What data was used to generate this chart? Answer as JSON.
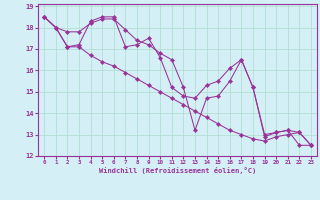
{
  "line1_x": [
    0,
    1,
    2,
    3,
    4,
    5,
    6,
    7,
    8,
    9,
    10,
    11,
    12,
    13,
    14,
    15,
    16,
    17,
    18,
    19,
    20,
    21,
    22,
    23
  ],
  "line1_y": [
    18.5,
    18.0,
    17.1,
    17.2,
    18.3,
    18.5,
    18.5,
    17.1,
    17.2,
    17.5,
    16.6,
    15.2,
    14.8,
    14.7,
    15.3,
    15.5,
    16.1,
    16.5,
    15.2,
    13.0,
    13.1,
    13.2,
    12.5,
    12.5
  ],
  "line2_x": [
    0,
    1,
    2,
    3,
    4,
    5,
    6,
    7,
    8,
    9,
    10,
    11,
    12,
    13,
    14,
    15,
    16,
    17,
    18,
    19,
    20,
    21,
    22,
    23
  ],
  "line2_y": [
    18.5,
    18.0,
    17.8,
    17.8,
    18.2,
    18.4,
    18.4,
    17.9,
    17.4,
    17.2,
    16.8,
    16.5,
    15.2,
    13.2,
    14.7,
    14.8,
    15.5,
    16.5,
    15.2,
    12.9,
    13.1,
    13.2,
    13.1,
    12.5
  ],
  "line3_x": [
    0,
    1,
    2,
    3,
    4,
    5,
    6,
    7,
    8,
    9,
    10,
    11,
    12,
    13,
    14,
    15,
    16,
    17,
    18,
    19,
    20,
    21,
    22,
    23
  ],
  "line3_y": [
    18.5,
    18.0,
    17.1,
    17.1,
    16.7,
    16.4,
    16.2,
    15.9,
    15.6,
    15.3,
    15.0,
    14.7,
    14.4,
    14.1,
    13.8,
    13.5,
    13.2,
    13.0,
    12.8,
    12.7,
    12.9,
    13.0,
    13.1,
    12.5
  ],
  "color": "#993399",
  "bg_color": "#d4eff5",
  "grid_color": "#aaddcc",
  "xlabel": "Windchill (Refroidissement éolien,°C)",
  "ylim": [
    12,
    19
  ],
  "xlim": [
    -0.5,
    23.5
  ],
  "yticks": [
    12,
    13,
    14,
    15,
    16,
    17,
    18,
    19
  ],
  "xticks": [
    0,
    1,
    2,
    3,
    4,
    5,
    6,
    7,
    8,
    9,
    10,
    11,
    12,
    13,
    14,
    15,
    16,
    17,
    18,
    19,
    20,
    21,
    22,
    23
  ]
}
